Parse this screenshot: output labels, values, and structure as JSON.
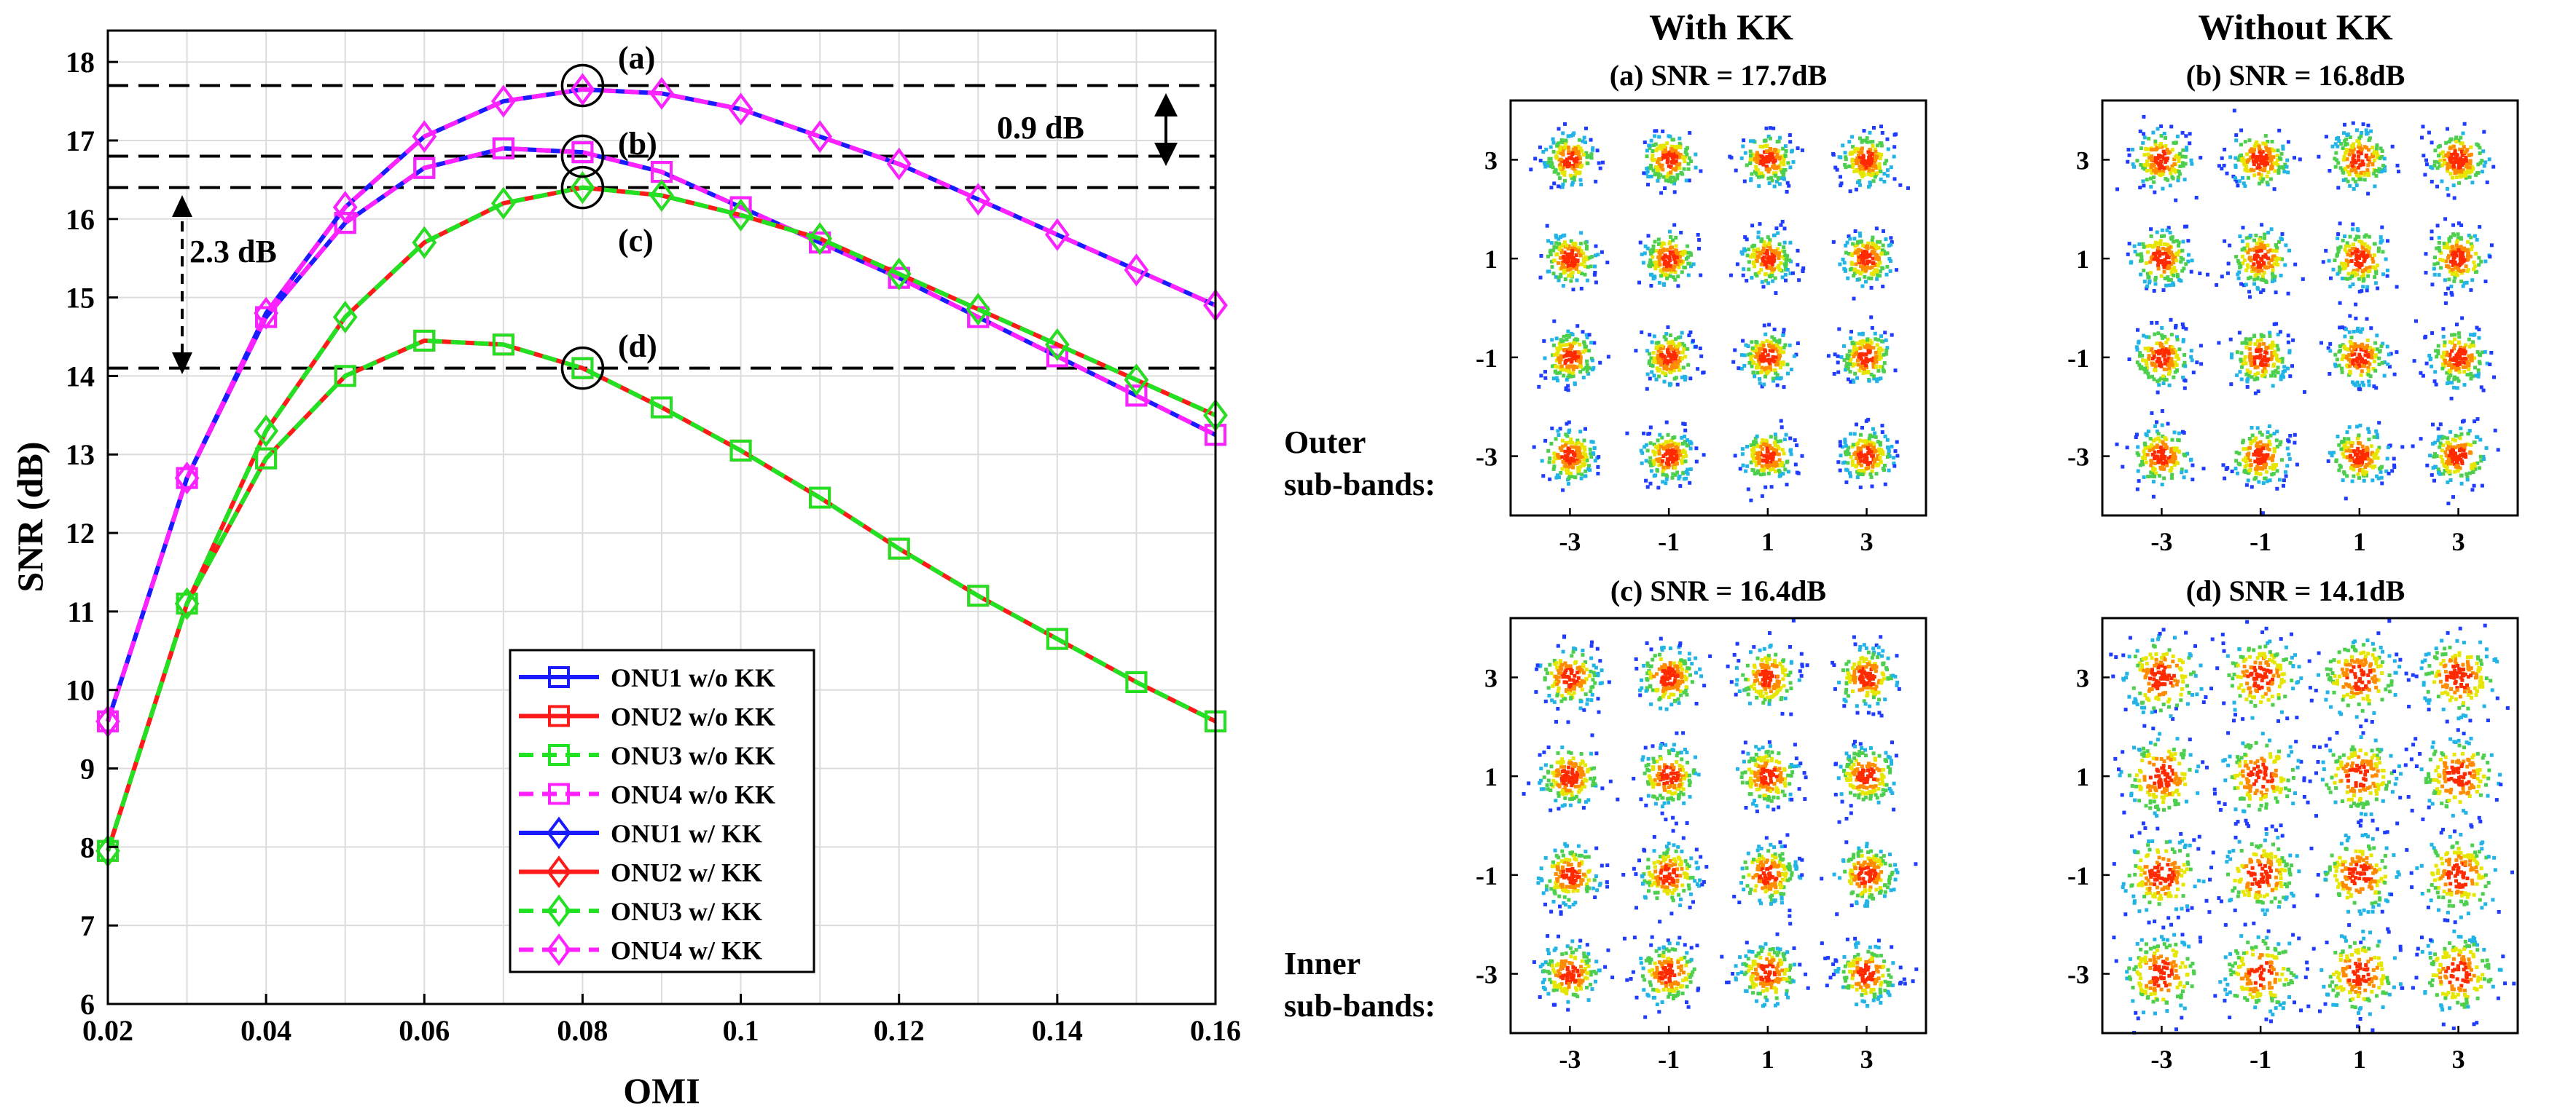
{
  "chart_data": [
    {
      "type": "line",
      "xlabel": "OMI",
      "ylabel": "SNR (dB)",
      "xlim": [
        0.02,
        0.16
      ],
      "ylim": [
        6,
        18.4
      ],
      "x": [
        0.02,
        0.03,
        0.04,
        0.05,
        0.06,
        0.07,
        0.08,
        0.09,
        0.1,
        0.11,
        0.12,
        0.13,
        0.14,
        0.15,
        0.16
      ],
      "x_tick_labels": [
        "0.02",
        "0.04",
        "0.06",
        "0.08",
        "0.1",
        "0.12",
        "0.14",
        "0.16"
      ],
      "y_tick_labels": [
        "6",
        "7",
        "8",
        "9",
        "10",
        "11",
        "12",
        "13",
        "14",
        "15",
        "16",
        "17",
        "18"
      ],
      "grid": true,
      "legend_position": "bottom-center",
      "series": [
        {
          "name": "ONU1 w/o KK",
          "color": "#1a1aff",
          "marker": "square",
          "dash": false,
          "values": [
            9.6,
            12.7,
            14.75,
            15.95,
            16.65,
            16.9,
            16.85,
            16.6,
            16.15,
            15.7,
            15.25,
            14.75,
            14.25,
            13.75,
            13.25
          ]
        },
        {
          "name": "ONU2 w/o KK",
          "color": "#ff1a1a",
          "marker": "square",
          "dash": false,
          "values": [
            7.95,
            11.1,
            12.95,
            14.0,
            14.45,
            14.4,
            14.1,
            13.6,
            13.05,
            12.45,
            11.8,
            11.2,
            10.65,
            10.1,
            9.6
          ]
        },
        {
          "name": "ONU3 w/o KK",
          "color": "#22e022",
          "marker": "square",
          "dash": true,
          "values": [
            7.95,
            11.1,
            12.95,
            14.0,
            14.45,
            14.4,
            14.1,
            13.6,
            13.05,
            12.45,
            11.8,
            11.2,
            10.65,
            10.1,
            9.6
          ]
        },
        {
          "name": "ONU4 w/o KK",
          "color": "#ff22ff",
          "marker": "square",
          "dash": true,
          "values": [
            9.6,
            12.7,
            14.75,
            15.95,
            16.65,
            16.9,
            16.85,
            16.6,
            16.15,
            15.7,
            15.25,
            14.75,
            14.25,
            13.75,
            13.25
          ]
        },
        {
          "name": "ONU1 w/ KK",
          "color": "#1a1aff",
          "marker": "diamond",
          "dash": false,
          "values": [
            9.6,
            12.7,
            14.8,
            16.15,
            17.05,
            17.5,
            17.65,
            17.6,
            17.4,
            17.05,
            16.7,
            16.25,
            15.8,
            15.35,
            14.9
          ]
        },
        {
          "name": "ONU2 w/ KK",
          "color": "#ff1a1a",
          "marker": "diamond",
          "dash": false,
          "values": [
            7.95,
            11.1,
            13.3,
            14.75,
            15.7,
            16.2,
            16.4,
            16.3,
            16.05,
            15.75,
            15.3,
            14.85,
            14.4,
            13.95,
            13.5
          ]
        },
        {
          "name": "ONU3 w/ KK",
          "color": "#22e022",
          "marker": "diamond",
          "dash": true,
          "values": [
            7.95,
            11.1,
            13.3,
            14.75,
            15.7,
            16.2,
            16.4,
            16.3,
            16.05,
            15.75,
            15.3,
            14.85,
            14.4,
            13.95,
            13.5
          ]
        },
        {
          "name": "ONU4 w/ KK",
          "color": "#ff22ff",
          "marker": "diamond",
          "dash": true,
          "values": [
            9.6,
            12.7,
            14.8,
            16.15,
            17.05,
            17.5,
            17.65,
            17.6,
            17.4,
            17.05,
            16.7,
            16.25,
            15.8,
            15.35,
            14.9
          ]
        }
      ],
      "reference_lines": [
        17.7,
        16.8,
        16.4,
        14.1
      ],
      "annotations": [
        {
          "label": "(a)",
          "x": 0.08,
          "y": 17.7
        },
        {
          "label": "(b)",
          "x": 0.08,
          "y": 16.8
        },
        {
          "label": "(c)",
          "x": 0.08,
          "y": 16.4
        },
        {
          "label": "(d)",
          "x": 0.08,
          "y": 14.1
        },
        {
          "label": "0.9 dB",
          "x": 0.155,
          "y1": 16.8,
          "y2": 17.7
        },
        {
          "label": "2.3 dB",
          "x": 0.029,
          "y1": 14.1,
          "y2": 16.4
        }
      ]
    },
    {
      "type": "scatter",
      "title": "(a) SNR = 17.7dB",
      "snr_db": 17.7,
      "xlim": [
        -4.2,
        4.2
      ],
      "ylim": [
        -4.2,
        4.2
      ],
      "x_tick_labels": [
        "-3",
        "-1",
        "1",
        "3"
      ],
      "y_tick_labels": [
        "3",
        "1",
        "-1",
        "-3"
      ],
      "centers": [
        -3,
        -1,
        1,
        3
      ]
    },
    {
      "type": "scatter",
      "title": "(b) SNR = 16.8dB",
      "snr_db": 16.8,
      "xlim": [
        -4.2,
        4.2
      ],
      "ylim": [
        -4.2,
        4.2
      ],
      "x_tick_labels": [
        "-3",
        "-1",
        "1",
        "3"
      ],
      "y_tick_labels": [
        "3",
        "1",
        "-1",
        "-3"
      ],
      "centers": [
        -3,
        -1,
        1,
        3
      ]
    },
    {
      "type": "scatter",
      "title": "(c) SNR = 16.4dB",
      "snr_db": 16.4,
      "xlim": [
        -4.2,
        4.2
      ],
      "ylim": [
        -4.2,
        4.2
      ],
      "x_tick_labels": [
        "-3",
        "-1",
        "1",
        "3"
      ],
      "y_tick_labels": [
        "3",
        "1",
        "-1",
        "-3"
      ],
      "centers": [
        -3,
        -1,
        1,
        3
      ]
    },
    {
      "type": "scatter",
      "title": "(d) SNR = 14.1dB",
      "snr_db": 14.1,
      "xlim": [
        -4.2,
        4.2
      ],
      "ylim": [
        -4.2,
        4.2
      ],
      "x_tick_labels": [
        "-3",
        "-1",
        "1",
        "3"
      ],
      "y_tick_labels": [
        "3",
        "1",
        "-1",
        "-3"
      ],
      "centers": [
        -3,
        -1,
        1,
        3
      ]
    }
  ],
  "constellation_headers": {
    "with_kk": "With KK",
    "without_kk": "Without KK",
    "outer_line1": "Outer",
    "outer_line2": "sub-bands:",
    "inner_line1": "Inner",
    "inner_line2": "sub-bands:"
  }
}
